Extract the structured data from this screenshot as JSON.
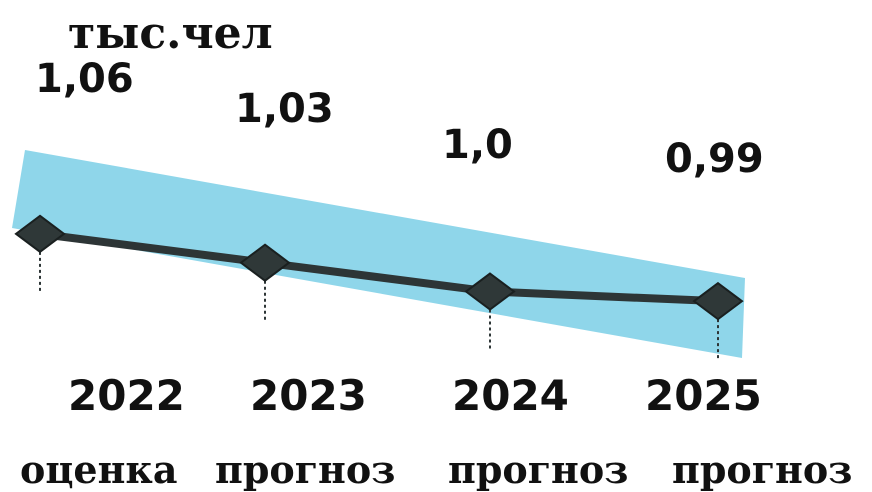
{
  "chart_data": {
    "type": "line",
    "unit_label": "тыс.чел",
    "categories": [
      "2022",
      "2023",
      "2024",
      "2025"
    ],
    "category_notes": [
      "оценка",
      "прогноз",
      "прогноз",
      "прогноз"
    ],
    "value_labels": [
      "1,06",
      "1,03",
      "1,0",
      "0,99"
    ],
    "series": [
      {
        "values": [
          1.06,
          1.03,
          1.0,
          0.99
        ]
      }
    ],
    "ylim": [
      0.96,
      1.09
    ],
    "grid": false,
    "colors": {
      "band": "#8fd6ea",
      "line": "#2d3536",
      "marker": "#2f3838",
      "text": "#111111"
    }
  }
}
